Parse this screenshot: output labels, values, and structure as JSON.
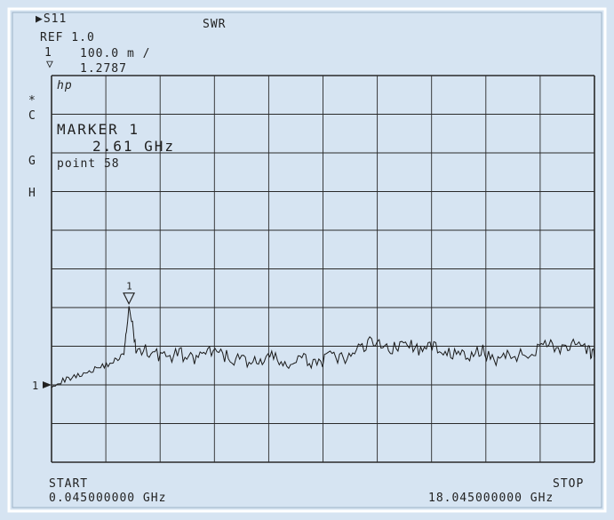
{
  "header": {
    "measurement": "S11",
    "format": "SWR",
    "ref_label": "REF 1.0",
    "scale_label": "100.0 m /",
    "marker_index": "1",
    "marker_readout": "1.2787",
    "logo": "hp"
  },
  "side_labels": {
    "star": "*",
    "c": "C",
    "g": "G",
    "h": "H"
  },
  "marker_box": {
    "title": "MARKER 1",
    "freq": "2.61 GHz",
    "point": "point  58"
  },
  "footer": {
    "start_label": "START",
    "start_value": "0.045000000 GHz",
    "stop_label": "STOP",
    "stop_value": "18.045000000 GHz"
  },
  "colors": {
    "background": "#d6e4f2",
    "grid": "#2a2a2a",
    "trace": "#1a1a1a",
    "frame": "#ffffff"
  },
  "chart_data": {
    "type": "line",
    "title": "",
    "xlabel": "",
    "ylabel": "",
    "xlim": [
      0.045,
      18.045
    ],
    "ylim": [
      1.0,
      2.0
    ],
    "reference_value": 1.0,
    "grid": true,
    "marker": {
      "label": "1",
      "x": 2.61,
      "y": 1.2787
    },
    "series": [
      {
        "x": [
          0.045,
          0.545,
          1.045,
          1.545,
          2.045,
          2.445,
          2.61,
          2.845,
          3.345,
          3.845,
          4.345,
          4.845,
          5.345,
          5.845,
          6.345,
          6.845,
          7.345,
          7.845,
          8.345,
          8.845,
          9.345,
          9.845,
          10.345,
          10.845,
          11.345,
          11.845,
          12.345,
          12.845,
          13.345,
          13.845,
          14.345,
          14.845,
          15.345,
          15.845,
          16.345,
          16.845,
          17.345,
          17.845,
          18.045
        ],
        "values": [
          1.0,
          1.02,
          1.04,
          1.06,
          1.08,
          1.11,
          1.28,
          1.13,
          1.12,
          1.1,
          1.11,
          1.09,
          1.12,
          1.1,
          1.09,
          1.08,
          1.1,
          1.07,
          1.09,
          1.08,
          1.1,
          1.09,
          1.14,
          1.16,
          1.13,
          1.15,
          1.12,
          1.14,
          1.11,
          1.1,
          1.12,
          1.09,
          1.11,
          1.1,
          1.16,
          1.13,
          1.14,
          1.12,
          1.1
        ]
      }
    ]
  }
}
